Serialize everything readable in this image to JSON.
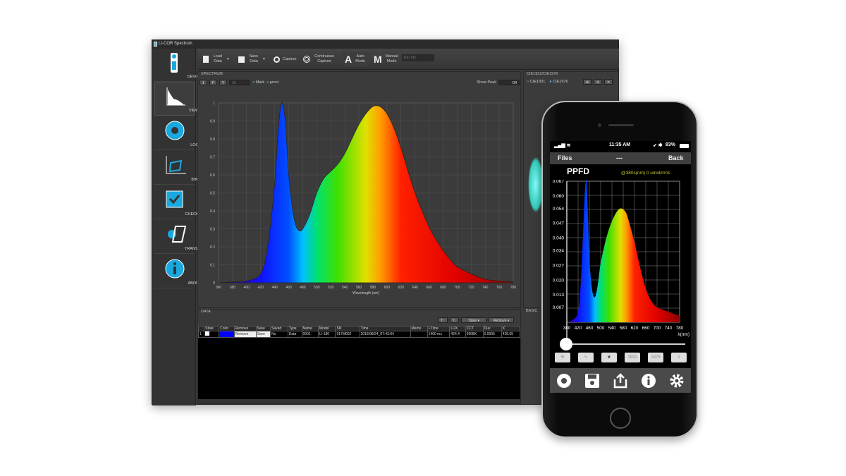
{
  "window": {
    "title": "LI-COR Spectrum"
  },
  "sidebar": {
    "items": [
      {
        "label": "DEVICE",
        "icon": "device-icon"
      },
      {
        "label": "VIEW",
        "icon": "spectrum-view-icon"
      },
      {
        "label": "LOG",
        "icon": "aperture-icon"
      },
      {
        "label": "BIN",
        "icon": "bin-icon"
      },
      {
        "label": "CHECKER",
        "icon": "checkbox-icon"
      },
      {
        "label": "TRANSMIT",
        "icon": "transmit-icon"
      },
      {
        "label": "ABOUT",
        "icon": "info-icon"
      }
    ]
  },
  "toolbar": {
    "load": "Load Data",
    "save": "Save Data",
    "capture": "Capture",
    "continuous": "Continuous Capture",
    "auto": "Auto Mode",
    "manual": "Manual Mode",
    "auto_letter": "A",
    "manual_letter": "M",
    "interval": "100 ms"
  },
  "spectrum": {
    "header": "SPECTRUM",
    "tools": [
      "1",
      "F",
      "Y"
    ],
    "count": "20",
    "mark": "Mark",
    "unit": "μmol",
    "show_peak": "Show Peak",
    "peak_toggle": "Off"
  },
  "cie": {
    "header": "CIE1931/CIE1976",
    "opt1": "CIE1931",
    "opt2": "CIE1976"
  },
  "data": {
    "header": "DATA",
    "state_btn": "State ▾",
    "remove_btn": "Remove ▾",
    "columns": [
      "State",
      "Color",
      "Remove",
      "Save",
      "Saved",
      "Type",
      "Name",
      "Model",
      "SN",
      "Time",
      "Memo",
      "I-Time",
      "LUX",
      "CCT",
      "Duv",
      "X"
    ],
    "rows": [
      {
        "index": "1",
        "remove": "Remove",
        "save": "Save",
        "saved": "No",
        "type": "Data",
        "name": "0001",
        "model": "LI-180",
        "sn": "917M002",
        "time": "2018/08/24_07:43:04",
        "memo": "",
        "itime": "1400 ms",
        "lux": "424.4",
        "cct": "3968K",
        "duv": "0.0005",
        "x": "428.05",
        "color": "#0000ff"
      }
    ]
  },
  "basic": {
    "header": "BASIC"
  },
  "phone": {
    "time": "11:35 AM",
    "battery": "83%",
    "nav_left": "Files",
    "nav_mid": "---",
    "nav_right": "Back",
    "title": "PPFD",
    "readout": "@380λ(nm) 0 umol/m²/s",
    "xunit": "λ(nm)",
    "buttons": [
      "list-icon",
      "chart-icon",
      "leaf-icon",
      "1931",
      "1976",
      "menu-icon"
    ],
    "bottom": [
      "aperture-icon",
      "save-icon",
      "share-icon",
      "info-icon",
      "gear-icon"
    ],
    "slider_value_nm": 380
  },
  "chart_data": [
    {
      "type": "area",
      "xlabel": "Wavelength (nm)",
      "ylabel": "",
      "xlim": [
        360,
        780
      ],
      "ylim": [
        0,
        1
      ],
      "grid": true,
      "xticks": [
        360,
        380,
        400,
        420,
        440,
        460,
        480,
        500,
        520,
        540,
        560,
        580,
        600,
        620,
        640,
        660,
        680,
        700,
        720,
        740,
        760,
        780
      ],
      "yticks": [
        "0",
        "0.1",
        "0.2",
        "0.3",
        "0.4",
        "0.5",
        "0.6",
        "0.7",
        "0.8",
        "0.9",
        "1"
      ],
      "x": [
        360,
        380,
        400,
        420,
        430,
        440,
        445,
        450,
        455,
        460,
        465,
        470,
        475,
        480,
        490,
        500,
        510,
        520,
        530,
        540,
        550,
        560,
        570,
        580,
        590,
        600,
        610,
        620,
        630,
        640,
        650,
        660,
        670,
        680,
        690,
        700,
        720,
        740,
        760,
        780
      ],
      "y": [
        0,
        0.005,
        0.01,
        0.05,
        0.2,
        0.55,
        0.85,
        1.0,
        0.9,
        0.6,
        0.42,
        0.32,
        0.29,
        0.3,
        0.38,
        0.5,
        0.58,
        0.62,
        0.66,
        0.72,
        0.8,
        0.88,
        0.94,
        0.98,
        0.98,
        0.94,
        0.86,
        0.75,
        0.62,
        0.5,
        0.4,
        0.31,
        0.24,
        0.18,
        0.13,
        0.09,
        0.05,
        0.02,
        0.01,
        0.005
      ]
    },
    {
      "type": "area",
      "xlabel": "λ(nm)",
      "xlim": [
        380,
        780
      ],
      "ylim": [
        0,
        0.067
      ],
      "grid": true,
      "xticks": [
        380,
        420,
        460,
        500,
        540,
        580,
        620,
        660,
        700,
        740,
        780
      ],
      "yticks": [
        "0.067",
        "0.060",
        "0.054",
        "0.047",
        "0.040",
        "0.034",
        "0.027",
        "0.020",
        "0.013",
        "0.007"
      ],
      "x": [
        380,
        400,
        420,
        430,
        440,
        445,
        450,
        455,
        460,
        470,
        480,
        490,
        500,
        520,
        540,
        560,
        575,
        590,
        600,
        620,
        640,
        660,
        680,
        700,
        720,
        740,
        760,
        780
      ],
      "y": [
        0,
        0.001,
        0.005,
        0.02,
        0.05,
        0.064,
        0.067,
        0.05,
        0.03,
        0.015,
        0.012,
        0.018,
        0.028,
        0.04,
        0.048,
        0.053,
        0.054,
        0.052,
        0.048,
        0.038,
        0.026,
        0.016,
        0.01,
        0.007,
        0.006,
        0.005,
        0.004,
        0.003
      ]
    }
  ]
}
